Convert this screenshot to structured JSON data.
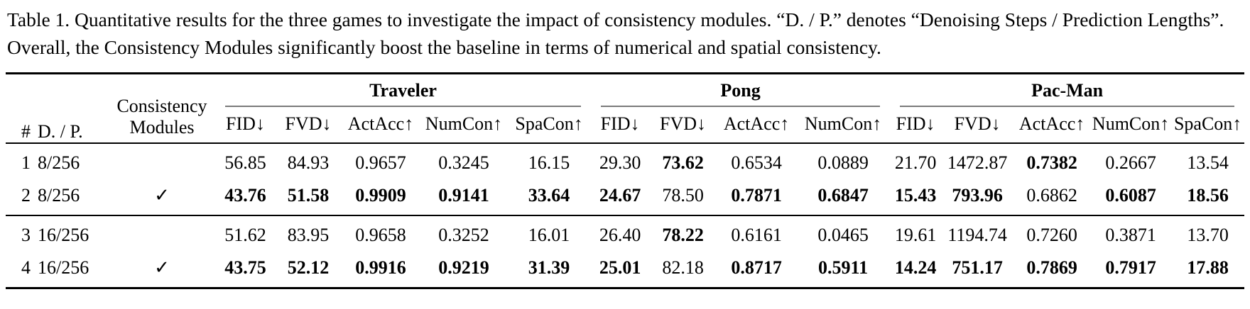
{
  "caption": {
    "text": "Table 1. Quantitative results for the three games to investigate the impact of consistency modules. “D. / P.” denotes “Denoising Steps / Prediction Lengths”. Overall, the Consistency Modules significantly boost the baseline in terms of numerical and spatial consistency."
  },
  "table": {
    "header": {
      "num": "#",
      "dp": "D. / P.",
      "consistency": "Consistency Modules"
    },
    "groups": [
      {
        "label": "Traveler",
        "metrics": [
          "FID↓",
          "FVD↓",
          "ActAcc↑",
          "NumCon↑",
          "SpaCon↑"
        ]
      },
      {
        "label": "Pong",
        "metrics": [
          "FID↓",
          "FVD↓",
          "ActAcc↑",
          "NumCon↑"
        ]
      },
      {
        "label": "Pac-Man",
        "metrics": [
          "FID↓",
          "FVD↓",
          "ActAcc↑",
          "NumCon↑",
          "SpaCon↑"
        ]
      }
    ],
    "rows": [
      {
        "cells": [
          "1",
          "8/256",
          "",
          "56.85",
          "84.93",
          "0.9657",
          "0.3245",
          "16.15",
          "29.30",
          "73.62",
          "0.6534",
          "0.0889",
          "21.70",
          "1472.87",
          "0.7382",
          "0.2667",
          "13.54"
        ],
        "bold": [
          9,
          14
        ]
      },
      {
        "cells": [
          "2",
          "8/256",
          "✓",
          "43.76",
          "51.58",
          "0.9909",
          "0.9141",
          "33.64",
          "24.67",
          "78.50",
          "0.7871",
          "0.6847",
          "15.43",
          "793.96",
          "0.6862",
          "0.6087",
          "18.56"
        ],
        "bold": [
          3,
          4,
          5,
          6,
          7,
          8,
          10,
          11,
          12,
          13,
          15,
          16
        ]
      },
      {
        "cells": [
          "3",
          "16/256",
          "",
          "51.62",
          "83.95",
          "0.9658",
          "0.3252",
          "16.01",
          "26.40",
          "78.22",
          "0.6161",
          "0.0465",
          "19.61",
          "1194.74",
          "0.7260",
          "0.3871",
          "13.70"
        ],
        "bold": [
          9
        ]
      },
      {
        "cells": [
          "4",
          "16/256",
          "✓",
          "43.75",
          "52.12",
          "0.9916",
          "0.9219",
          "31.39",
          "25.01",
          "82.18",
          "0.8717",
          "0.5911",
          "14.24",
          "751.17",
          "0.7869",
          "0.7917",
          "17.88"
        ],
        "bold": [
          3,
          4,
          5,
          6,
          7,
          8,
          10,
          11,
          12,
          13,
          14,
          15,
          16
        ]
      }
    ]
  }
}
